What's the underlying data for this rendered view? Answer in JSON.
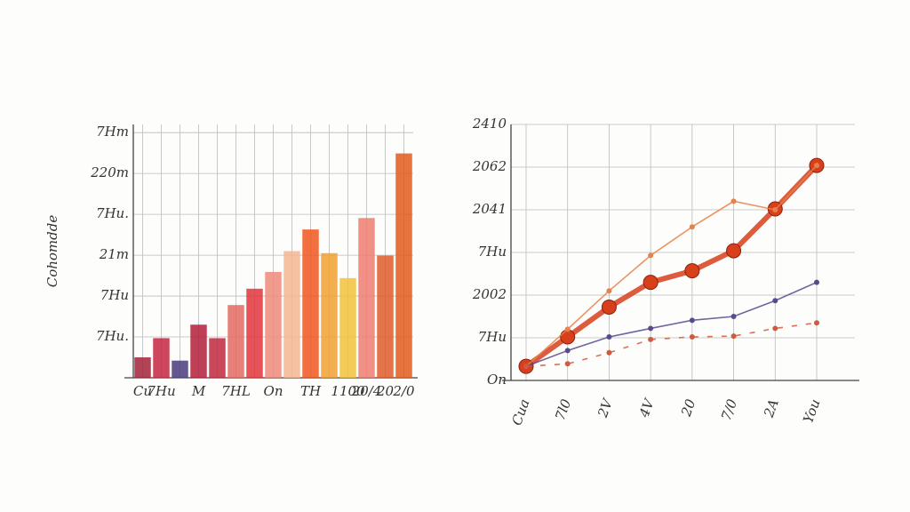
{
  "chart_data": [
    {
      "type": "bar",
      "y_label": "Cohomdde",
      "categories": [
        "Cu",
        "7Hu",
        null,
        "M",
        null,
        "7HL",
        null,
        "On",
        null,
        "TH",
        null,
        "1100",
        "20/4",
        "20",
        "2/0"
      ],
      "values": [
        0.5,
        0.97,
        0.42,
        1.3,
        0.97,
        1.78,
        2.18,
        2.59,
        3.1,
        3.63,
        3.05,
        2.44,
        3.91,
        2.99,
        5.49
      ],
      "colors": [
        "#a3223a",
        "#c4263f",
        "#4b3a7c",
        "#b21f3a",
        "#c0283c",
        "#e36a60",
        "#e0343a",
        "#ee8a7a",
        "#f4b690",
        "#f0571f",
        "#f0a030",
        "#f2c23a",
        "#ee7c70",
        "#e05a2a",
        "#e25a1c"
      ],
      "ylim": [
        0,
        6.2
      ],
      "yticks": [
        {
          "value": 1,
          "label": "7Hu."
        },
        {
          "value": 2,
          "label": "7Hu"
        },
        {
          "value": 3,
          "label": "21m"
        },
        {
          "value": 4,
          "label": "7Hu."
        },
        {
          "value": 5,
          "label": "220m"
        },
        {
          "value": 6,
          "label": "7Hm"
        }
      ],
      "grid": true
    },
    {
      "type": "line",
      "categories": [
        "Cua",
        "7l0",
        "2V",
        "4V",
        "20",
        "7/0",
        "2A",
        "You"
      ],
      "series": [
        {
          "color": "#d8401c",
          "values": [
            0.33,
            1.02,
            1.72,
            2.3,
            2.57,
            3.04,
            4.02,
            5.04
          ]
        },
        {
          "color": "#e8804a",
          "values": [
            0.33,
            1.2,
            2.1,
            2.93,
            3.6,
            4.2,
            4.0,
            5.04
          ]
        },
        {
          "color": "#5a4a8c",
          "values": [
            0.33,
            0.7,
            1.02,
            1.22,
            1.41,
            1.5,
            1.87,
            2.3
          ]
        },
        {
          "color": "#d05a40",
          "values": [
            0.33,
            0.39,
            0.65,
            0.96,
            1.02,
            1.04,
            1.22,
            1.35
          ]
        }
      ],
      "ylim": [
        0,
        6
      ],
      "yticks": [
        {
          "value": 0,
          "label": "On"
        },
        {
          "value": 1,
          "label": "7Hu"
        },
        {
          "value": 2,
          "label": "2002"
        },
        {
          "value": 3,
          "label": "7Hu"
        },
        {
          "value": 4,
          "label": "2041"
        },
        {
          "value": 5,
          "label": "2062"
        },
        {
          "value": 6,
          "label": "2410"
        }
      ],
      "grid": true
    }
  ]
}
